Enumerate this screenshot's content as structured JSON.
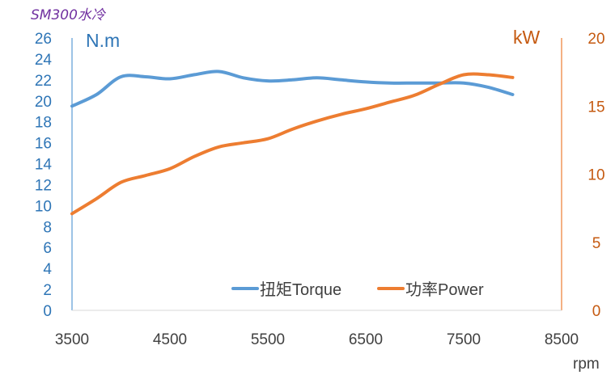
{
  "chart_data": {
    "type": "line",
    "title": "SM300水冷",
    "xlabel": "rpm",
    "y_left_label": "N.m",
    "y_right_label": "kW",
    "xlim": [
      3500,
      8500
    ],
    "ylim_left": [
      0,
      26
    ],
    "ylim_right": [
      0,
      20
    ],
    "x_ticks": [
      3500,
      4500,
      5500,
      6500,
      7500,
      8500
    ],
    "y_left_ticks": [
      0,
      2,
      4,
      6,
      8,
      10,
      12,
      14,
      16,
      18,
      20,
      22,
      24,
      26
    ],
    "y_right_ticks": [
      0,
      5,
      10,
      15,
      20
    ],
    "grid": false,
    "legend_position": "bottom-right",
    "colors": {
      "torque": "#5B9BD5",
      "power": "#ED7D31",
      "left_axis": "#2E75B6",
      "right_axis": "#C55A11",
      "title": "#7030A0",
      "x_axis_text": "#404040"
    },
    "series": [
      {
        "name": "扭矩Torque",
        "axis": "left",
        "x": [
          3500,
          3750,
          4000,
          4250,
          4500,
          4750,
          5000,
          5250,
          5500,
          5750,
          6000,
          6250,
          6500,
          6750,
          7000,
          7250,
          7500,
          7750,
          8000
        ],
        "values": [
          19.5,
          20.6,
          22.3,
          22.3,
          22.1,
          22.5,
          22.8,
          22.2,
          21.9,
          22.0,
          22.2,
          22.0,
          21.8,
          21.7,
          21.7,
          21.7,
          21.7,
          21.3,
          20.6
        ]
      },
      {
        "name": "功率Power",
        "axis": "right",
        "x": [
          3500,
          3750,
          4000,
          4250,
          4500,
          4750,
          5000,
          5250,
          5500,
          5750,
          6000,
          6250,
          6500,
          6750,
          7000,
          7250,
          7500,
          7750,
          8000
        ],
        "values": [
          7.1,
          8.2,
          9.4,
          9.9,
          10.4,
          11.3,
          12.0,
          12.3,
          12.6,
          13.3,
          13.9,
          14.4,
          14.8,
          15.3,
          15.8,
          16.6,
          17.3,
          17.3,
          17.1
        ]
      }
    ]
  }
}
